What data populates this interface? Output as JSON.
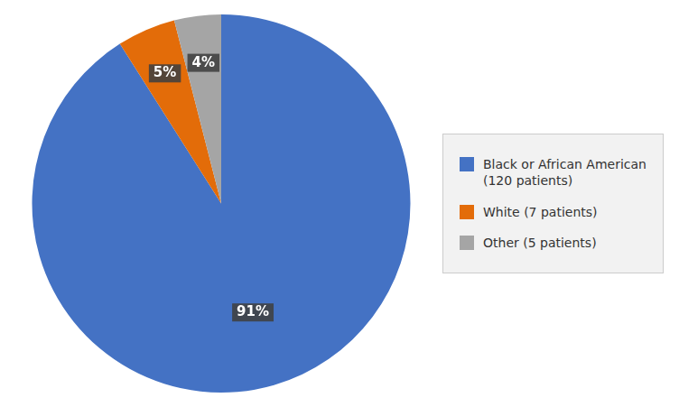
{
  "chart_data": {
    "type": "pie",
    "categories": [
      "Black or African American\n(120 patients)",
      "White (7 patients)",
      "Other (5 patients)"
    ],
    "values": [
      91,
      5,
      4
    ],
    "value_labels": [
      "91%",
      "5%",
      "4%"
    ],
    "colors": [
      "#4472C4",
      "#E36C09",
      "#A5A5A5"
    ],
    "data_labels": true,
    "legend": "right"
  }
}
